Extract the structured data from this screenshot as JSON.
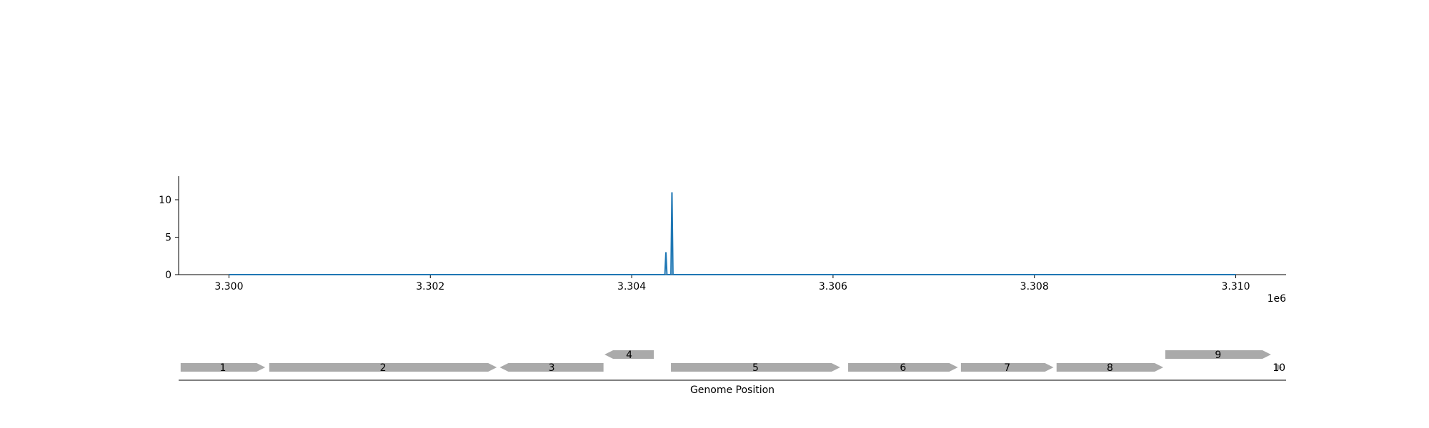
{
  "chart_data": [
    {
      "type": "line",
      "x": [
        3300000,
        3304300,
        3304310,
        3304320,
        3304330,
        3304340,
        3304350,
        3304360,
        3304370,
        3304380,
        3304390,
        3304400,
        3304410,
        3310000
      ],
      "series": [
        {
          "values": [
            0,
            0,
            0,
            0,
            0,
            3,
            0,
            0,
            0,
            0,
            0,
            11,
            0,
            0
          ],
          "color": "#1f77b4"
        }
      ],
      "xlim": [
        3299500,
        3310500
      ],
      "ylim": [
        0,
        12
      ],
      "xticks": [
        3300000,
        3302000,
        3304000,
        3306000,
        3308000,
        3310000
      ],
      "xtick_labels": [
        "3.300",
        "3.302",
        "3.304",
        "3.306",
        "3.308",
        "3.310"
      ],
      "yticks": [
        0,
        5,
        10
      ],
      "ytick_labels": [
        "0",
        "5",
        "10"
      ],
      "x_offset_label": "1e6",
      "grid": false
    },
    {
      "type": "gene_track",
      "xlabel": "Genome Position",
      "xlim": [
        3299500,
        3310500
      ],
      "gene_color": "#aaaaaa",
      "genes": [
        {
          "label": "1",
          "start": 3299520,
          "end": 3300360,
          "strand": "+",
          "row": 0
        },
        {
          "label": "2",
          "start": 3300400,
          "end": 3302660,
          "strand": "+",
          "row": 0
        },
        {
          "label": "3",
          "start": 3302690,
          "end": 3303720,
          "strand": "-",
          "row": 0
        },
        {
          "label": "4",
          "start": 3303730,
          "end": 3304220,
          "strand": "-",
          "row": 1
        },
        {
          "label": "5",
          "start": 3304390,
          "end": 3306070,
          "strand": "+",
          "row": 0
        },
        {
          "label": "6",
          "start": 3306150,
          "end": 3307240,
          "strand": "+",
          "row": 0
        },
        {
          "label": "7",
          "start": 3307270,
          "end": 3308190,
          "strand": "+",
          "row": 0
        },
        {
          "label": "8",
          "start": 3308220,
          "end": 3309280,
          "strand": "+",
          "row": 0
        },
        {
          "label": "9",
          "start": 3309300,
          "end": 3310350,
          "strand": "+",
          "row": 1
        },
        {
          "label": "10",
          "start": 3310400,
          "end": 3310460,
          "strand": "+",
          "row": 0
        }
      ]
    }
  ]
}
